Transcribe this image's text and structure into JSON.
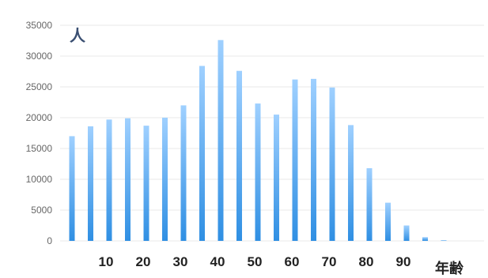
{
  "chart_data": {
    "type": "bar",
    "categories": [
      "0",
      "5",
      "10",
      "15",
      "20",
      "25",
      "30",
      "35",
      "40",
      "45",
      "50",
      "55",
      "60",
      "65",
      "70",
      "75",
      "80",
      "85",
      "90",
      "95",
      "100"
    ],
    "values": [
      17000,
      18600,
      19700,
      19900,
      18700,
      20000,
      22000,
      28400,
      32600,
      27600,
      22300,
      20500,
      26200,
      26300,
      24900,
      18800,
      11800,
      6200,
      2500,
      600,
      100
    ],
    "xlabel": "年齢",
    "ylabel": "人",
    "ylim": [
      0,
      35000
    ],
    "yticks": [
      0,
      5000,
      10000,
      15000,
      20000,
      25000,
      30000,
      35000
    ],
    "xtick_labels": [
      {
        "value": 10,
        "label": "10"
      },
      {
        "value": 20,
        "label": "20"
      },
      {
        "value": 30,
        "label": "30"
      },
      {
        "value": 40,
        "label": "40"
      },
      {
        "value": 50,
        "label": "50"
      },
      {
        "value": 60,
        "label": "60"
      },
      {
        "value": 70,
        "label": "70"
      },
      {
        "value": 80,
        "label": "80"
      },
      {
        "value": 90,
        "label": "90"
      }
    ],
    "grid": true,
    "colors": {
      "bar_top": "#9fd0ff",
      "bar_bottom": "#2f8fe3",
      "grid": "#e9e9e9",
      "axis_text": "#666666"
    }
  }
}
